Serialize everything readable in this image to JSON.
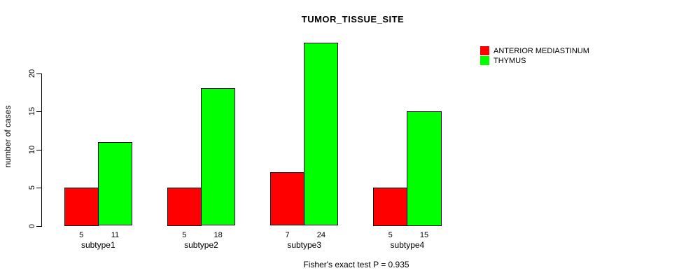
{
  "chart_data": {
    "type": "bar",
    "title": "TUMOR_TISSUE_SITE",
    "categories": [
      "subtype1",
      "subtype2",
      "subtype3",
      "subtype4"
    ],
    "series": [
      {
        "name": "ANTERIOR MEDIASTINUM",
        "color": "#ff0000",
        "values": [
          5,
          5,
          7,
          5
        ]
      },
      {
        "name": "THYMUS",
        "color": "#00ff00",
        "values": [
          11,
          18,
          24,
          15
        ]
      }
    ],
    "xlabel": "",
    "ylabel": "number of cases",
    "ylim": [
      0,
      24
    ],
    "yticks": [
      0,
      5,
      10,
      15,
      20
    ],
    "grid": false,
    "bar_value_labels_shown": true,
    "legend_position": "top-right-outside",
    "annotation": "Fisher's exact test P = 0.935"
  },
  "legend": {
    "items": [
      {
        "label": "ANTERIOR MEDIASTINUM",
        "color": "#ff0000"
      },
      {
        "label": "THYMUS",
        "color": "#00ff00"
      }
    ]
  },
  "colors": {
    "background": "#ffffff",
    "axis": "#000000",
    "text": "#000000",
    "bar_border": "#000000",
    "series_red": "#ff0000",
    "series_green": "#00ff00"
  }
}
